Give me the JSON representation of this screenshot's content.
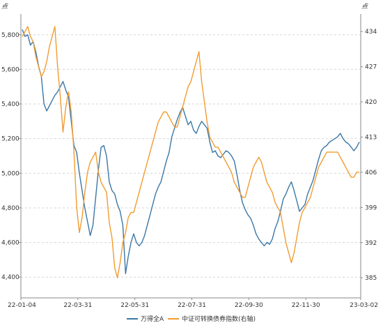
{
  "chart_data": {
    "type": "line",
    "left_unit": "点",
    "right_unit": "点",
    "x_labels": [
      "22-01-04",
      "22-03-31",
      "22-05-31",
      "22-07-31",
      "22-09-30",
      "22-11-30",
      "23-03-02"
    ],
    "left_axis": {
      "ylim": [
        4280,
        5920
      ],
      "ticks": [
        "4,400",
        "4,600",
        "4,800",
        "5,000",
        "5,200",
        "5,400",
        "5,600",
        "5,800"
      ],
      "tick_values": [
        4400,
        4600,
        4800,
        5000,
        5200,
        5400,
        5600,
        5800
      ]
    },
    "right_axis": {
      "ylim": [
        381,
        437.5
      ],
      "ticks": [
        "385",
        "392",
        "399",
        "406",
        "413",
        "420",
        "427",
        "434"
      ],
      "tick_values": [
        385,
        392,
        399,
        406,
        413,
        420,
        427,
        434
      ]
    },
    "grid": "horizontal-dashed",
    "legend_position": "bottom",
    "series": [
      {
        "name": "万得全A",
        "axis": "left",
        "color": "#3a77a6",
        "values": [
          5830,
          5790,
          5800,
          5740,
          5760,
          5700,
          5620,
          5560,
          5400,
          5360,
          5390,
          5420,
          5450,
          5470,
          5500,
          5530,
          5480,
          5440,
          5300,
          5160,
          5120,
          5000,
          4900,
          4800,
          4720,
          4640,
          4700,
          4860,
          5020,
          5150,
          5160,
          5100,
          4950,
          4900,
          4880,
          4820,
          4780,
          4700,
          4420,
          4520,
          4600,
          4650,
          4600,
          4580,
          4600,
          4640,
          4700,
          4760,
          4820,
          4880,
          4920,
          4950,
          5010,
          5070,
          5120,
          5210,
          5260,
          5310,
          5350,
          5380,
          5330,
          5280,
          5300,
          5250,
          5230,
          5270,
          5300,
          5280,
          5260,
          5180,
          5120,
          5130,
          5100,
          5090,
          5110,
          5130,
          5120,
          5100,
          5070,
          4990,
          4900,
          4830,
          4790,
          4760,
          4740,
          4700,
          4650,
          4620,
          4600,
          4580,
          4600,
          4590,
          4620,
          4680,
          4720,
          4780,
          4850,
          4880,
          4920,
          4950,
          4900,
          4840,
          4780,
          4800,
          4820,
          4880,
          4920,
          4960,
          5020,
          5080,
          5130,
          5150,
          5160,
          5180,
          5190,
          5200,
          5210,
          5230,
          5200,
          5180,
          5170,
          5150,
          5130,
          5150,
          5180
        ]
      },
      {
        "name": "中证可转换债券指数(右轴)",
        "axis": "right",
        "color": "#f29b30",
        "values": [
          433,
          434,
          435,
          433,
          432,
          429,
          427,
          425,
          426,
          428,
          431,
          433,
          435,
          427,
          421,
          414,
          419,
          422,
          418,
          410,
          399,
          394,
          397,
          402,
          406,
          408,
          409,
          410,
          406,
          404,
          403,
          402,
          396,
          393,
          387,
          385,
          388,
          392,
          394,
          397,
          398,
          398,
          400,
          402,
          404,
          406,
          408,
          410,
          412,
          414,
          416,
          417,
          418,
          418,
          417,
          416,
          415,
          415,
          417,
          419,
          421,
          423,
          424,
          426,
          428,
          430,
          424,
          420,
          416,
          413,
          412,
          411,
          411,
          410,
          409,
          408,
          407,
          406,
          404,
          403,
          402,
          401,
          401,
          403,
          405,
          407,
          408,
          409,
          408,
          406,
          404,
          403,
          402,
          400,
          399,
          398,
          395,
          392,
          390,
          388,
          390,
          393,
          396,
          398,
          399,
          400,
          401,
          403,
          405,
          407,
          408,
          409,
          410,
          410,
          410,
          410,
          410,
          409,
          408,
          407,
          406,
          405,
          405,
          406,
          406
        ]
      }
    ]
  }
}
